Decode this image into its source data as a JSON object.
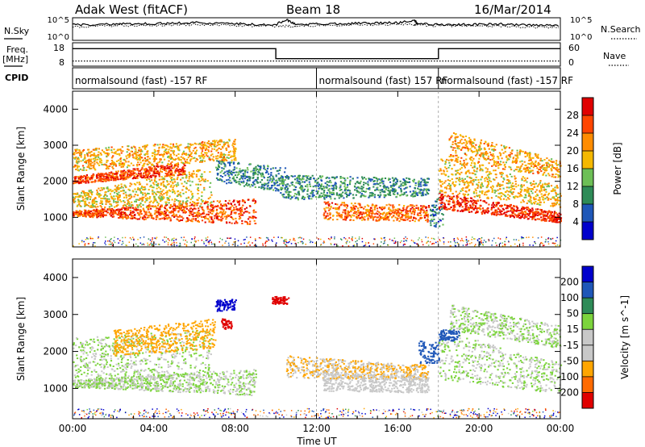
{
  "header": {
    "station": "Adak West (fitACF)",
    "beam": "Beam 18",
    "date": "16/Mar/2014"
  },
  "left_labels": {
    "nsky": "N.Sky",
    "freq": "Freq.",
    "freq_unit": "[MHz]",
    "cpid": "CPID"
  },
  "right_labels": {
    "nsearch": "N.Search",
    "nave": "Nave"
  },
  "strip_ticks": {
    "noise_left": [
      "10^5",
      "10^0"
    ],
    "noise_right": [
      "10^5",
      "10^0"
    ],
    "freq_left": [
      "18",
      "8"
    ],
    "freq_right": [
      "60",
      "0"
    ]
  },
  "cpid_segments": [
    {
      "text": "normalsound (fast) -157 RF",
      "start_hour": 0
    },
    {
      "text": "normalsound (fast) 157 RF",
      "start_hour": 12
    },
    {
      "text": "normalsound (fast) -157 RF",
      "start_hour": 18
    }
  ],
  "colors": {
    "power": [
      "#0000cc",
      "#1f57b8",
      "#2e8b57",
      "#6dbf56",
      "#f5b800",
      "#ff8c00",
      "#ff4500",
      "#e00000"
    ],
    "velocity": [
      "#e00000",
      "#ff6a00",
      "#ffa500",
      "#c8c8c8",
      "#c8c8c8",
      "#7cd43c",
      "#2e8b57",
      "#1f57b8",
      "#0000cc"
    ]
  },
  "chart_data": [
    {
      "type": "line",
      "panel": "noise",
      "series_y_range": [
        0,
        5
      ],
      "x": [
        0,
        1,
        2,
        3,
        4,
        5,
        6,
        7,
        8,
        9,
        10,
        10.5,
        11,
        12,
        13,
        14,
        15,
        16,
        16.8,
        17,
        18,
        19,
        20,
        21,
        22,
        23,
        24
      ],
      "series": [
        {
          "values": [
            3.4,
            3.5,
            3.6,
            3.6,
            3.7,
            3.8,
            3.9,
            3.8,
            3.7,
            3.5,
            3.5,
            4.6,
            3.5,
            3.6,
            3.7,
            3.8,
            3.8,
            3.9,
            4.4,
            3.7,
            3.5,
            3.5,
            3.5,
            3.6,
            3.4,
            3.3,
            3.3
          ]
        },
        {
          "values": [
            3.0,
            3.1,
            3.2,
            3.3,
            3.3,
            3.4,
            3.5,
            3.4,
            3.3,
            3.2,
            3.1,
            3.2,
            3.1,
            3.3,
            3.4,
            3.5,
            3.5,
            3.6,
            3.5,
            3.4,
            3.2,
            3.2,
            3.1,
            3.2,
            3.0,
            2.9,
            2.9
          ]
        }
      ]
    },
    {
      "type": "line",
      "panel": "frequency",
      "y_left_range": [
        8,
        18
      ],
      "y_right_range": [
        0,
        60
      ],
      "series": [
        {
          "segments": [
            [
              0,
              15.5
            ],
            [
              10,
              15.5
            ],
            [
              10,
              11.2
            ],
            [
              18,
              11.2
            ],
            [
              18,
              15.5
            ],
            [
              24,
              15.5
            ]
          ]
        },
        {
          "segments": [
            [
              0,
              10.2
            ],
            [
              24,
              10.2
            ]
          ]
        }
      ]
    },
    {
      "type": "heatmap",
      "title": "",
      "xlabel": "",
      "ylabel": "Slant Range [km]",
      "x_ticks": [
        "00:00",
        "04:00",
        "08:00",
        "12:00",
        "16:00",
        "20:00",
        "00:00"
      ],
      "x_tick_hours": [
        0,
        4,
        8,
        12,
        16,
        20,
        24
      ],
      "xlim": [
        0,
        24
      ],
      "y_ticks": [
        1000,
        2000,
        3000,
        4000
      ],
      "ylim": [
        180,
        4500
      ],
      "colorbar_label": "Power [dB]",
      "colorbar_ticks": [
        "4",
        "8",
        "12",
        "16",
        "20",
        "24",
        "28"
      ],
      "colorbar_range": [
        0,
        32
      ],
      "scatter_regions": [
        {
          "t": [
            0,
            9
          ],
          "range_start": [
            1050,
            820
          ],
          "range_end": [
            1200,
            1550
          ],
          "value": 26
        },
        {
          "t": [
            0,
            6.8
          ],
          "range_start": [
            1300,
            1300
          ],
          "range_end": [
            1700,
            2400
          ],
          "value": 18
        },
        {
          "t": [
            0,
            5.5
          ],
          "range_start": [
            1950,
            2200
          ],
          "range_end": [
            2150,
            2550
          ],
          "value": 27
        },
        {
          "t": [
            0,
            8
          ],
          "range_start": [
            2300,
            2600
          ],
          "range_end": [
            2900,
            3200
          ],
          "value": 20
        },
        {
          "t": [
            7,
            10.5
          ],
          "range_start": [
            2000,
            1700
          ],
          "range_end": [
            2600,
            2400
          ],
          "value": 9
        },
        {
          "t": [
            10.2,
            17.5
          ],
          "range_start": [
            1500,
            1600
          ],
          "range_end": [
            2200,
            2100
          ],
          "value": 10
        },
        {
          "t": [
            12.3,
            17.5
          ],
          "range_start": [
            950,
            900
          ],
          "range_end": [
            1450,
            1350
          ],
          "value": 24
        },
        {
          "t": [
            17.5,
            18.2
          ],
          "range_start": [
            700,
            800
          ],
          "range_end": [
            1300,
            1700
          ],
          "value": 8
        },
        {
          "t": [
            18,
            24
          ],
          "range_start": [
            1250,
            870
          ],
          "range_end": [
            1700,
            1150
          ],
          "value": 28
        },
        {
          "t": [
            18,
            24
          ],
          "range_start": [
            1700,
            1300
          ],
          "range_end": [
            2700,
            1900
          ],
          "value": 19
        },
        {
          "t": [
            18.5,
            24
          ],
          "range_start": [
            2600,
            2100
          ],
          "range_end": [
            3400,
            2600
          ],
          "value": 20
        }
      ]
    },
    {
      "type": "heatmap",
      "title": "",
      "xlabel": "Time UT",
      "ylabel": "Slant Range [km]",
      "x_ticks": [
        "00:00",
        "04:00",
        "08:00",
        "12:00",
        "16:00",
        "20:00",
        "00:00"
      ],
      "x_tick_hours": [
        0,
        4,
        8,
        12,
        16,
        20,
        24
      ],
      "xlim": [
        0,
        24
      ],
      "y_ticks": [
        1000,
        2000,
        3000,
        4000
      ],
      "ylim": [
        180,
        4500
      ],
      "colorbar_label": "Velocity [m s^-1]",
      "colorbar_ticks": [
        "200",
        "100",
        "50",
        "15",
        "-15",
        "-50",
        "-100",
        "-200"
      ],
      "colorbar_range": [
        -250,
        250
      ],
      "scatter_regions": [
        {
          "t": [
            0,
            9
          ],
          "range_start": [
            1050,
            820
          ],
          "range_end": [
            1250,
            1550
          ],
          "value": 0
        },
        {
          "t": [
            0,
            6.8
          ],
          "range_start": [
            1300,
            1300
          ],
          "range_end": [
            2400,
            2600
          ],
          "value": 0
        },
        {
          "t": [
            2,
            7
          ],
          "range_start": [
            1900,
            2100
          ],
          "range_end": [
            2600,
            2900
          ],
          "value": -60
        },
        {
          "t": [
            7,
            8
          ],
          "range_start": [
            3100,
            3150
          ],
          "range_end": [
            3400,
            3450
          ],
          "value": 230
        },
        {
          "t": [
            7.3,
            7.8
          ],
          "range_start": [
            2600,
            2600
          ],
          "range_end": [
            2900,
            2900
          ],
          "value": -230
        },
        {
          "t": [
            9.8,
            10.6
          ],
          "range_start": [
            3300,
            3300
          ],
          "range_end": [
            3500,
            3500
          ],
          "value": -230
        },
        {
          "t": [
            10.5,
            17.5
          ],
          "range_start": [
            1300,
            1250
          ],
          "range_end": [
            1900,
            1650
          ],
          "value": -50
        },
        {
          "t": [
            12.3,
            17.5
          ],
          "range_start": [
            950,
            900
          ],
          "range_end": [
            1450,
            1350
          ],
          "value": -40
        },
        {
          "t": [
            17,
            18
          ],
          "range_start": [
            1700,
            1700
          ],
          "range_end": [
            2300,
            2300
          ],
          "value": 60
        },
        {
          "t": [
            18,
            24
          ],
          "range_start": [
            1250,
            870
          ],
          "range_end": [
            2600,
            1700
          ],
          "value": 0
        },
        {
          "t": [
            18.5,
            24
          ],
          "range_start": [
            2600,
            2100
          ],
          "range_end": [
            3300,
            2700
          ],
          "value": 0
        },
        {
          "t": [
            18,
            19
          ],
          "range_start": [
            2300,
            2300
          ],
          "range_end": [
            2600,
            2600
          ],
          "value": 60
        }
      ]
    }
  ]
}
